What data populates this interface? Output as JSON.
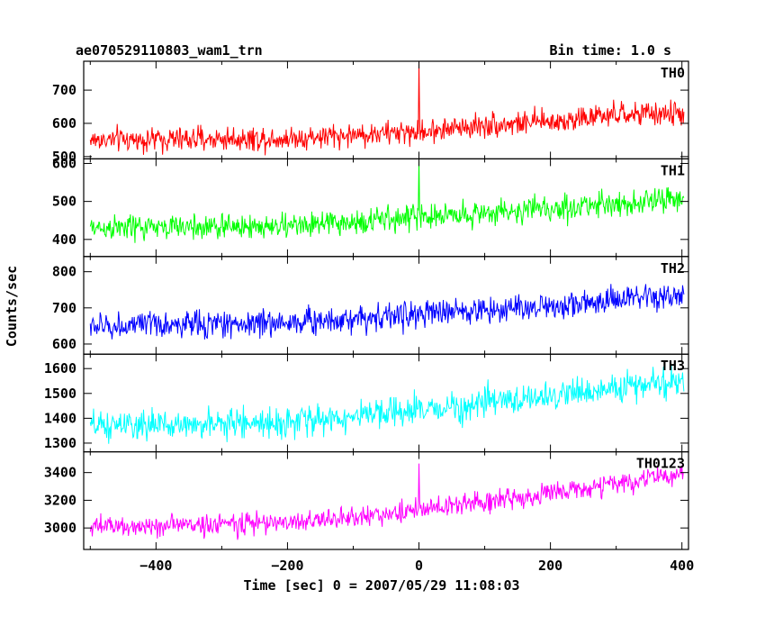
{
  "header": {
    "title": "ae070529110803_wam1_trn",
    "bin_time": "Bin time: 1.0 s"
  },
  "chart_data": {
    "type": "line",
    "xlabel": "Time [sec] 0 = 2007/05/29 11:08:03",
    "ylabel": "Counts/sec",
    "xlim": [
      -510,
      410
    ],
    "x_range": [
      -500,
      403
    ],
    "x_ticks": [
      -400,
      -200,
      0,
      200,
      400
    ],
    "x_tick_labels": [
      "−400",
      "−200",
      "0",
      "200",
      "400"
    ],
    "grid": false,
    "series": [
      {
        "name": "TH0",
        "color": "#ff0000",
        "ylim": [
          493,
          787
        ],
        "y_ticks": [
          500,
          600,
          700
        ],
        "y_tick_labels": [
          "500",
          "600",
          "700"
        ],
        "trend": [
          [
            -500,
            550
          ],
          [
            -200,
            555
          ],
          [
            -100,
            565
          ],
          [
            0,
            575
          ],
          [
            100,
            595
          ],
          [
            200,
            605
          ],
          [
            300,
            625
          ],
          [
            400,
            630
          ]
        ],
        "noise": 26,
        "burst": {
          "x": 0,
          "peak": 787
        }
      },
      {
        "name": "TH1",
        "color": "#00ff00",
        "ylim": [
          355,
          612
        ],
        "y_ticks": [
          400,
          500,
          600
        ],
        "y_tick_labels": [
          "400",
          "500",
          "600"
        ],
        "trend": [
          [
            -500,
            430
          ],
          [
            -200,
            435
          ],
          [
            -100,
            445
          ],
          [
            0,
            460
          ],
          [
            100,
            470
          ],
          [
            200,
            480
          ],
          [
            300,
            495
          ],
          [
            400,
            505
          ]
        ],
        "noise": 24,
        "burst": {
          "x": 0,
          "peak": 612
        }
      },
      {
        "name": "TH2",
        "color": "#0000ff",
        "ylim": [
          572,
          842
        ],
        "y_ticks": [
          600,
          700,
          800
        ],
        "y_tick_labels": [
          "600",
          "700",
          "800"
        ],
        "trend": [
          [
            -500,
            648
          ],
          [
            -200,
            660
          ],
          [
            -100,
            672
          ],
          [
            0,
            682
          ],
          [
            100,
            695
          ],
          [
            200,
            705
          ],
          [
            300,
            720
          ],
          [
            400,
            732
          ]
        ],
        "noise": 27,
        "burst": null
      },
      {
        "name": "TH3",
        "color": "#00ffff",
        "ylim": [
          1265,
          1658
        ],
        "y_ticks": [
          1300,
          1400,
          1500,
          1600
        ],
        "y_tick_labels": [
          "1300",
          "1400",
          "1500",
          "1600"
        ],
        "trend": [
          [
            -500,
            1365
          ],
          [
            -200,
            1385
          ],
          [
            -100,
            1405
          ],
          [
            0,
            1430
          ],
          [
            100,
            1460
          ],
          [
            200,
            1490
          ],
          [
            300,
            1520
          ],
          [
            400,
            1550
          ]
        ],
        "noise": 42,
        "burst": null
      },
      {
        "name": "TH0123",
        "color": "#ff00ff",
        "ylim": [
          2845,
          3550
        ],
        "y_ticks": [
          3000,
          3200,
          3400
        ],
        "y_tick_labels": [
          "3000",
          "3200",
          "3400"
        ],
        "trend": [
          [
            -500,
            3005
          ],
          [
            -200,
            3040
          ],
          [
            -100,
            3075
          ],
          [
            0,
            3130
          ],
          [
            100,
            3190
          ],
          [
            200,
            3250
          ],
          [
            300,
            3320
          ],
          [
            400,
            3390
          ]
        ],
        "noise": 55,
        "burst": {
          "x": 0,
          "peak": 3465
        }
      }
    ]
  }
}
